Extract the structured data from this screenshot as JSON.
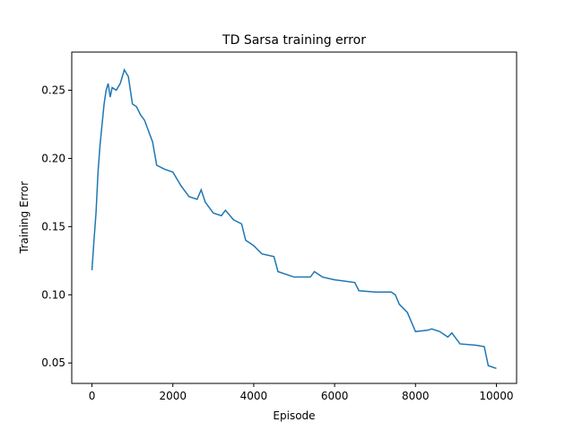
{
  "chart_data": {
    "type": "line",
    "title": "TD Sarsa training error",
    "xlabel": "Episode",
    "ylabel": "Training Error",
    "x": [
      0,
      50,
      100,
      150,
      200,
      250,
      300,
      350,
      400,
      450,
      500,
      600,
      700,
      800,
      900,
      1000,
      1100,
      1200,
      1300,
      1400,
      1500,
      1600,
      1800,
      2000,
      2200,
      2400,
      2600,
      2700,
      2800,
      3000,
      3200,
      3300,
      3500,
      3700,
      3800,
      4000,
      4200,
      4500,
      4600,
      5000,
      5400,
      5500,
      5700,
      6000,
      6500,
      6600,
      7000,
      7400,
      7500,
      7600,
      7800,
      8000,
      8300,
      8400,
      8600,
      8800,
      8900,
      9100,
      9500,
      9700,
      9800,
      10000
    ],
    "series": [
      {
        "name": "Training Error",
        "color": "#1f77b4",
        "values": [
          0.118,
          0.14,
          0.16,
          0.19,
          0.21,
          0.225,
          0.24,
          0.25,
          0.255,
          0.245,
          0.252,
          0.25,
          0.255,
          0.265,
          0.26,
          0.24,
          0.238,
          0.232,
          0.228,
          0.22,
          0.212,
          0.195,
          0.192,
          0.19,
          0.18,
          0.172,
          0.17,
          0.177,
          0.168,
          0.16,
          0.158,
          0.162,
          0.155,
          0.152,
          0.14,
          0.136,
          0.13,
          0.128,
          0.117,
          0.113,
          0.113,
          0.117,
          0.113,
          0.111,
          0.109,
          0.103,
          0.102,
          0.102,
          0.1,
          0.093,
          0.087,
          0.073,
          0.074,
          0.075,
          0.073,
          0.069,
          0.072,
          0.064,
          0.063,
          0.062,
          0.048,
          0.046
        ]
      }
    ],
    "xlim": [
      -500,
      10500
    ],
    "xticks": [
      0,
      2000,
      4000,
      6000,
      8000,
      10000
    ],
    "ylim": [
      0.035,
      0.278
    ],
    "yticks": [
      0.05,
      {
        "value": 0.1,
        "label": "0.10"
      },
      0.15,
      {
        "value": 0.2,
        "label": "0.20"
      },
      0.25
    ]
  }
}
